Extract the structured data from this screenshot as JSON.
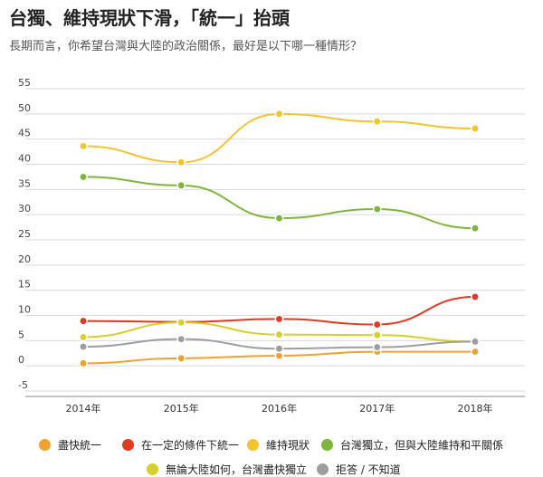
{
  "title": "台獨、維持現狀下滑，「統一」抬頭",
  "subtitle": "長期而言，你希望台灣與大陸的政治關係，最好是以下哪一種情形？",
  "chart_data": {
    "type": "line",
    "title": "台獨、維持現狀下滑，「統一」抬頭",
    "subtitle": "長期而言，你希望台灣與大陸的政治關係，最好是以下哪一種情形？",
    "categories": [
      "2014年",
      "2015年",
      "2016年",
      "2017年",
      "2018年"
    ],
    "ylim": [
      -5,
      55
    ],
    "yticks": [
      55,
      50,
      45,
      40,
      35,
      30,
      25,
      20,
      15,
      10,
      5,
      0,
      -5
    ],
    "grid": true,
    "legend_position": "bottom",
    "series": [
      {
        "name": "盡快統一",
        "color": "#f2a22c",
        "values": [
          0.5,
          1.5,
          2.0,
          2.8,
          2.8
        ]
      },
      {
        "name": "在一定的條件下統一",
        "color": "#e03a21",
        "values": [
          8.9,
          8.7,
          9.3,
          8.2,
          13.7
        ]
      },
      {
        "name": "維持現狀",
        "color": "#f4c430",
        "values": [
          43.6,
          40.4,
          50.0,
          48.5,
          47.1
        ]
      },
      {
        "name": "台灣獨立，但與大陸維持和平關係",
        "color": "#7db63a",
        "values": [
          37.5,
          35.8,
          29.3,
          31.1,
          27.3
        ]
      },
      {
        "name": "無論大陸如何，台灣盡快獨立",
        "color": "#d7cf2e",
        "values": [
          5.7,
          8.6,
          6.2,
          6.1,
          4.8
        ]
      },
      {
        "name": "拒答 / 不知道",
        "color": "#9e9e9e",
        "values": [
          3.8,
          5.3,
          3.4,
          3.7,
          4.8
        ]
      }
    ]
  }
}
